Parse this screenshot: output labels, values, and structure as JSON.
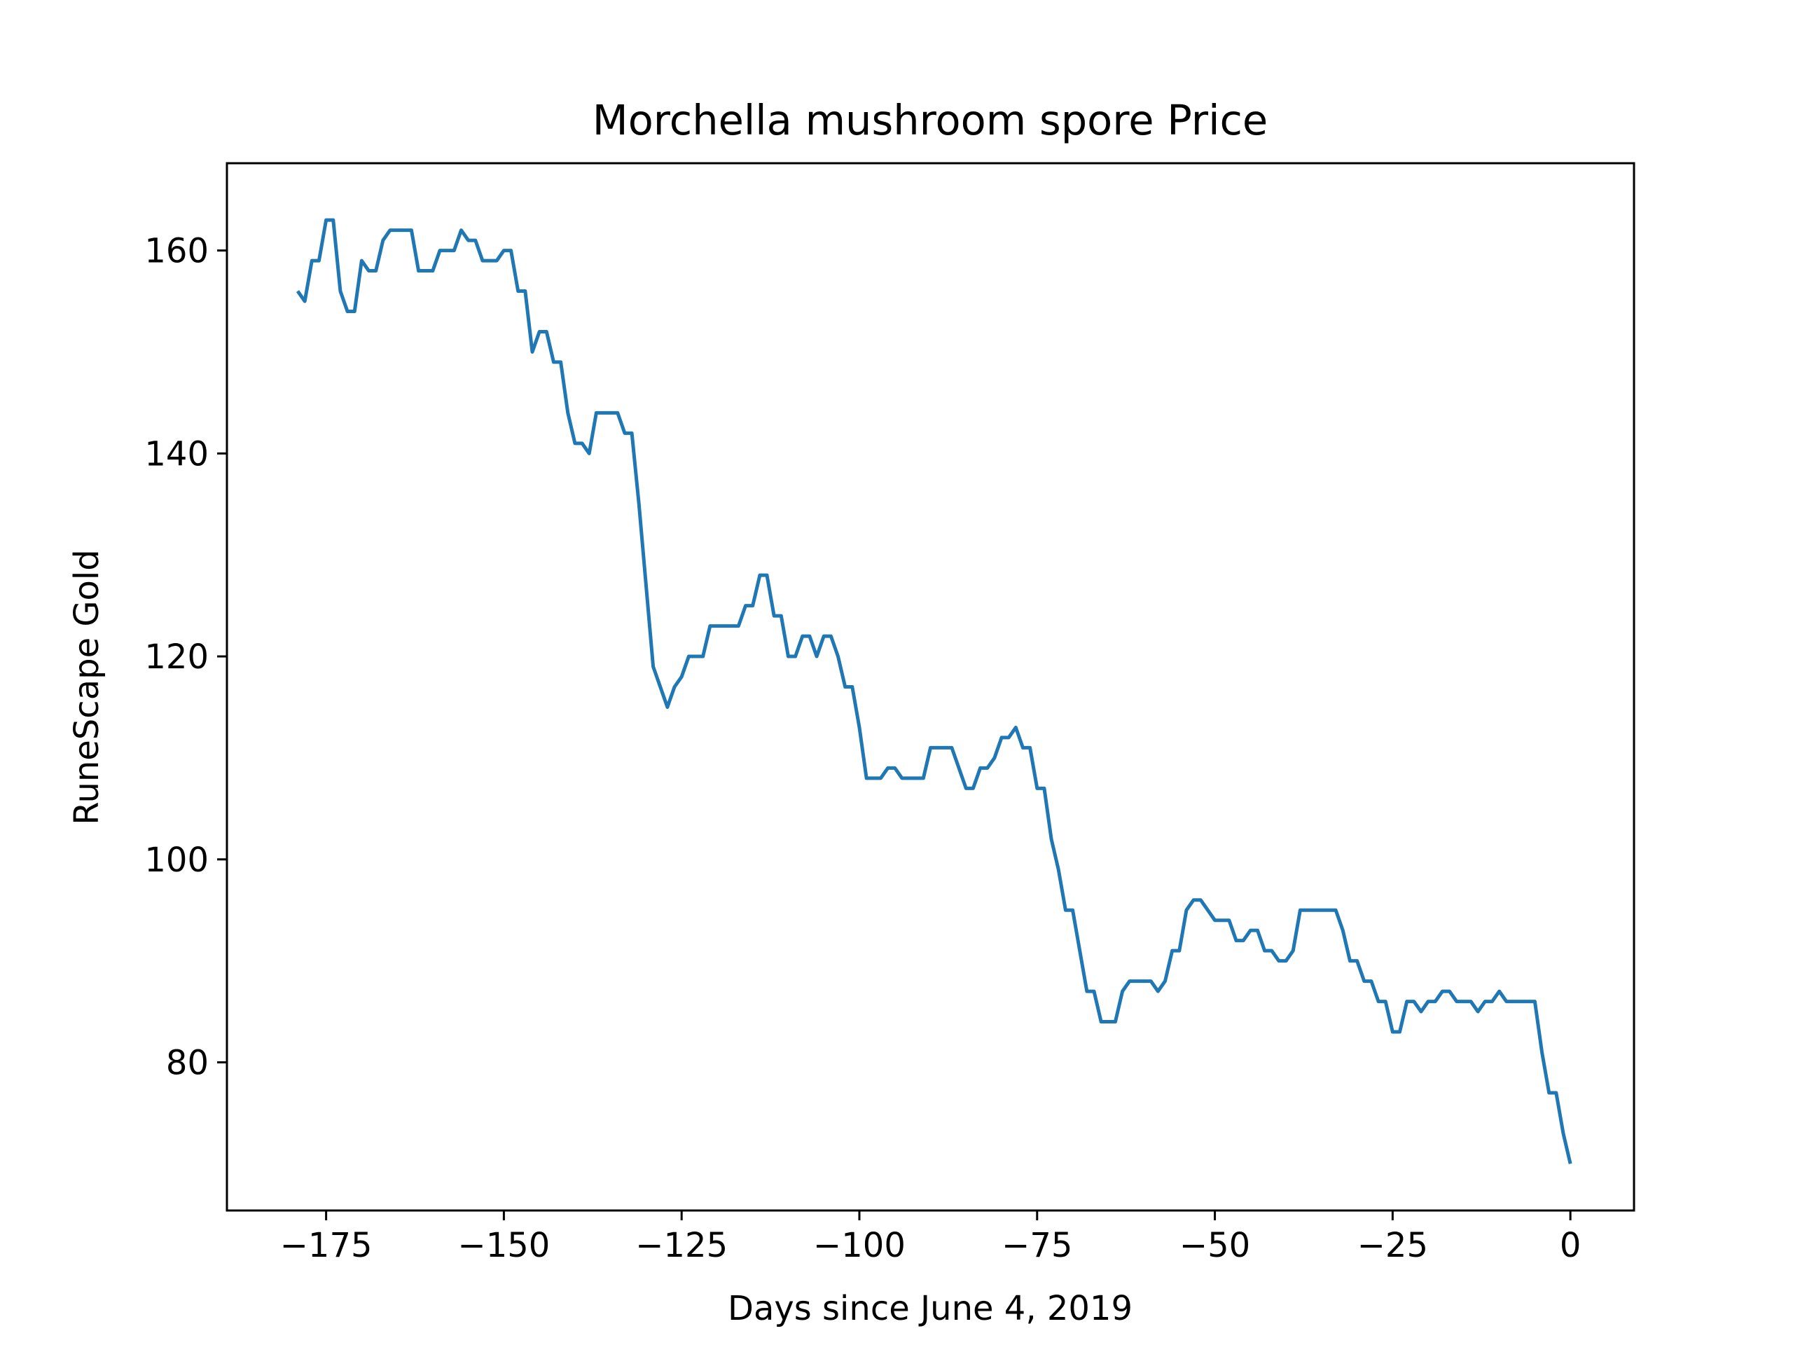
{
  "chart_data": {
    "type": "line",
    "title": "Morchella mushroom spore Price",
    "xlabel": "Days since June 4, 2019",
    "ylabel": "RuneScape Gold",
    "xlim": [
      -188.95,
      8.95
    ],
    "ylim": [
      65.4,
      168.6
    ],
    "xticks": [
      -175,
      -150,
      -125,
      -100,
      -75,
      -50,
      -25,
      0
    ],
    "xtick_labels": [
      "−175",
      "−150",
      "−125",
      "−100",
      "−75",
      "−50",
      "−25",
      "0"
    ],
    "yticks": [
      80,
      100,
      120,
      140,
      160
    ],
    "ytick_labels": [
      "80",
      "100",
      "120",
      "140",
      "160"
    ],
    "grid": false,
    "line_color": "#1f77b4",
    "series": [
      {
        "x": [
          -179,
          -178,
          -177,
          -176,
          -175,
          -174,
          -173,
          -172,
          -171,
          -170,
          -169,
          -168,
          -167,
          -166,
          -165,
          -164,
          -163,
          -162,
          -161,
          -160,
          -159,
          -158,
          -157,
          -156,
          -155,
          -154,
          -153,
          -152,
          -151,
          -150,
          -149,
          -148,
          -147,
          -146,
          -145,
          -144,
          -143,
          -142,
          -141,
          -140,
          -139,
          -138,
          -137,
          -136,
          -135,
          -134,
          -133,
          -132,
          -131,
          -130,
          -129,
          -128,
          -127,
          -126,
          -125,
          -124,
          -123,
          -122,
          -121,
          -120,
          -119,
          -118,
          -117,
          -116,
          -115,
          -114,
          -113,
          -112,
          -111,
          -110,
          -109,
          -108,
          -107,
          -106,
          -105,
          -104,
          -103,
          -102,
          -101,
          -100,
          -99,
          -98,
          -97,
          -96,
          -95,
          -94,
          -93,
          -92,
          -91,
          -90,
          -89,
          -88,
          -87,
          -86,
          -85,
          -84,
          -83,
          -82,
          -81,
          -80,
          -79,
          -78,
          -77,
          -76,
          -75,
          -74,
          -73,
          -72,
          -71,
          -70,
          -69,
          -68,
          -67,
          -66,
          -65,
          -64,
          -63,
          -62,
          -61,
          -60,
          -59,
          -58,
          -57,
          -56,
          -55,
          -54,
          -53,
          -52,
          -51,
          -50,
          -49,
          -48,
          -47,
          -46,
          -45,
          -44,
          -43,
          -42,
          -41,
          -40,
          -39,
          -38,
          -37,
          -36,
          -35,
          -34,
          -33,
          -32,
          -31,
          -30,
          -29,
          -28,
          -27,
          -26,
          -25,
          -24,
          -23,
          -22,
          -21,
          -20,
          -19,
          -18,
          -17,
          -16,
          -15,
          -14,
          -13,
          -12,
          -11,
          -10,
          -9,
          -8,
          -7,
          -6,
          -5,
          -4,
          -3,
          -2,
          -1,
          0
        ],
        "values": [
          156,
          155,
          159,
          159,
          163,
          163,
          156,
          154,
          154,
          159,
          158,
          158,
          161,
          162,
          162,
          162,
          162,
          158,
          158,
          158,
          160,
          160,
          160,
          162,
          161,
          161,
          159,
          159,
          159,
          160,
          160,
          156,
          156,
          150,
          152,
          152,
          149,
          149,
          144,
          141,
          141,
          140,
          144,
          144,
          144,
          144,
          142,
          142,
          135,
          127,
          119,
          117,
          115,
          117,
          118,
          120,
          120,
          120,
          123,
          123,
          123,
          123,
          123,
          125,
          125,
          128,
          128,
          124,
          124,
          120,
          120,
          122,
          122,
          120,
          122,
          122,
          120,
          117,
          117,
          113,
          108,
          108,
          108,
          109,
          109,
          108,
          108,
          108,
          108,
          111,
          111,
          111,
          111,
          109,
          107,
          107,
          109,
          109,
          110,
          112,
          112,
          113,
          111,
          111,
          107,
          107,
          102,
          99,
          95,
          95,
          91,
          87,
          87,
          84,
          84,
          84,
          87,
          88,
          88,
          88,
          88,
          87,
          88,
          91,
          91,
          95,
          96,
          96,
          95,
          94,
          94,
          94,
          92,
          92,
          93,
          93,
          91,
          91,
          90,
          90,
          91,
          95,
          95,
          95,
          95,
          95,
          95,
          93,
          90,
          90,
          88,
          88,
          86,
          86,
          83,
          83,
          86,
          86,
          85,
          86,
          86,
          87,
          87,
          86,
          86,
          86,
          85,
          86,
          86,
          87,
          86,
          86,
          86,
          86,
          86,
          81,
          77,
          77,
          73,
          70
        ]
      }
    ]
  }
}
